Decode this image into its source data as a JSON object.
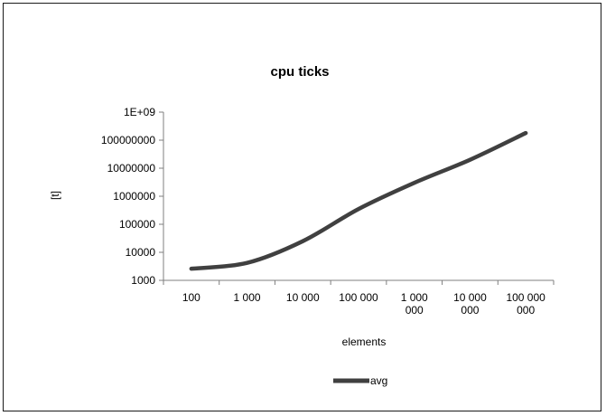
{
  "chart_data": {
    "type": "line",
    "title": "cpu ticks",
    "xlabel": "elements",
    "ylabel": "[t]",
    "y_scale": "log",
    "ylim": [
      1000,
      1000000000
    ],
    "y_ticks": [
      "1E+09",
      "100000000",
      "10000000",
      "1000000",
      "100000",
      "10000",
      "1000"
    ],
    "x_categories": [
      [
        "100"
      ],
      [
        "1 000"
      ],
      [
        "10 000"
      ],
      [
        "100 000"
      ],
      [
        "1 000",
        "000"
      ],
      [
        "10 000",
        "000"
      ],
      [
        "100 000",
        "000"
      ]
    ],
    "legend": {
      "position": "bottom"
    },
    "series": [
      {
        "name": "avg",
        "color": "#404040",
        "values": [
          2600,
          4200,
          25000,
          350000,
          3000000,
          20000000,
          180000000
        ]
      }
    ]
  }
}
